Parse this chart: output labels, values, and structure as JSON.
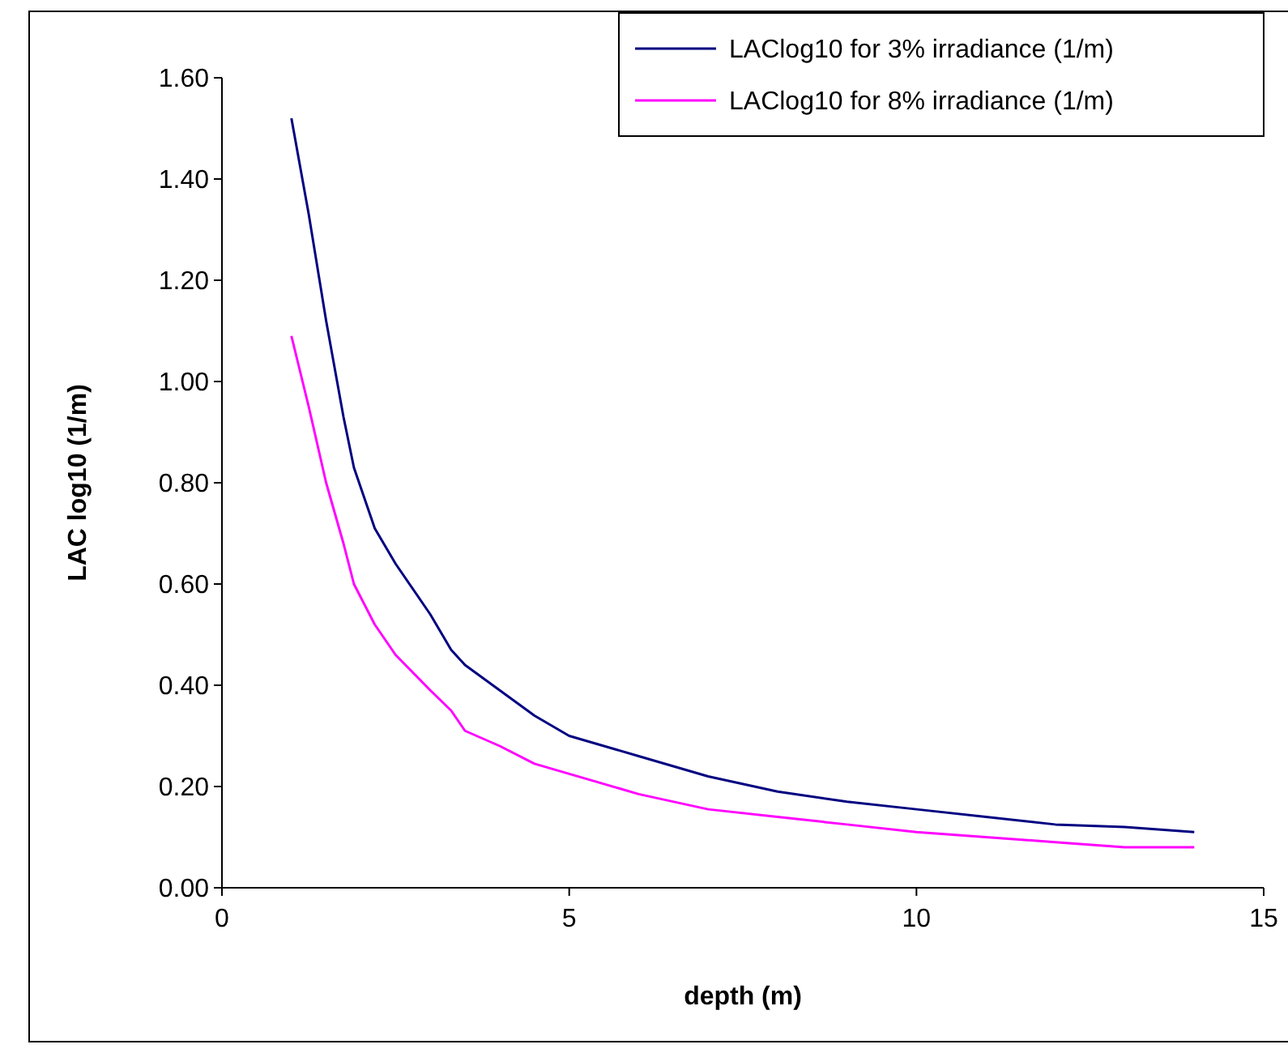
{
  "chart_data": {
    "type": "line",
    "xlabel": "depth (m)",
    "ylabel": "LAC log10 (1/m)",
    "x": [
      1,
      1.25,
      1.5,
      1.75,
      1.9,
      2.2,
      2.5,
      3,
      3.3,
      3.5,
      4,
      4.5,
      5,
      6,
      7,
      8,
      9,
      10,
      11,
      12,
      13,
      14
    ],
    "series": [
      {
        "name": "LAClog10 for 3% irradiance (1/m)",
        "color": "#000080",
        "values": [
          1.52,
          1.33,
          1.12,
          0.93,
          0.83,
          0.71,
          0.64,
          0.54,
          0.47,
          0.44,
          0.39,
          0.34,
          0.3,
          0.26,
          0.22,
          0.19,
          0.17,
          0.155,
          0.14,
          0.125,
          0.12,
          0.11
        ]
      },
      {
        "name": "LAClog10 for 8% irradiance (1/m)",
        "color": "#ff00ff",
        "values": [
          1.09,
          0.95,
          0.8,
          0.68,
          0.6,
          0.52,
          0.46,
          0.39,
          0.35,
          0.31,
          0.28,
          0.245,
          0.225,
          0.185,
          0.155,
          0.14,
          0.125,
          0.11,
          0.1,
          0.09,
          0.08,
          0.08
        ]
      }
    ],
    "xlim": [
      0,
      15
    ],
    "xticks": [
      0,
      5,
      10,
      15
    ],
    "ylim": [
      0,
      1.6
    ],
    "yticks": [
      {
        "value": 0,
        "label": "0.00"
      },
      {
        "value": 0.2,
        "label": "0.20"
      },
      {
        "value": 0.4,
        "label": "0.40"
      },
      {
        "value": 0.6,
        "label": "0.60"
      },
      {
        "value": 0.8,
        "label": "0.80"
      },
      {
        "value": 1,
        "label": "1.00"
      },
      {
        "value": 1.2,
        "label": "1.20"
      },
      {
        "value": 1.4,
        "label": "1.40"
      },
      {
        "value": 1.6,
        "label": "1.60"
      }
    ],
    "grid": false,
    "legend": "top right",
    "marker": "none",
    "line_style": "solid"
  }
}
